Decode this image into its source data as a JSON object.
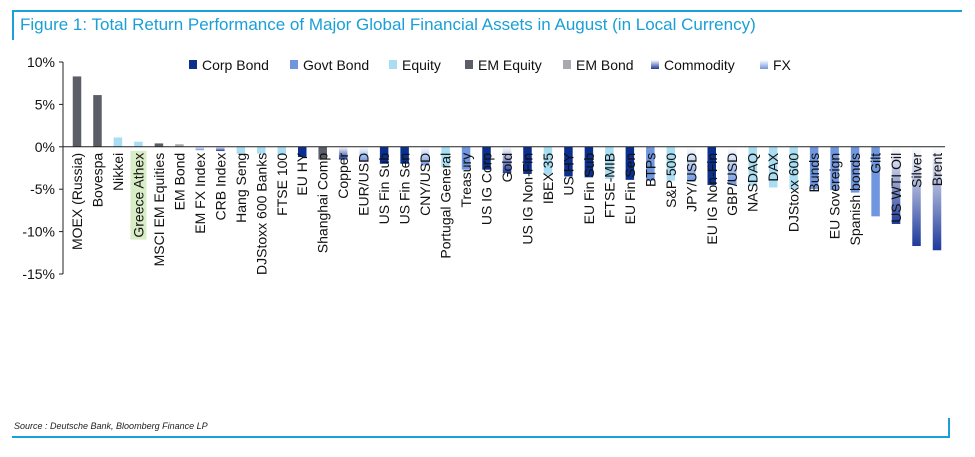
{
  "title": "Figure 1: Total Return Performance of Major Global Financial Assets in August (in Local Currency)",
  "source": "Source : Deutsche Bank, Bloomberg Finance LP",
  "chart_data": {
    "type": "bar",
    "title": "Figure 1: Total Return Performance of Major Global Financial Assets in August (in Local Currency)",
    "xlabel": "",
    "ylabel": "",
    "ylim": [
      -15,
      10
    ],
    "yticks": [
      10,
      5,
      0,
      -5,
      -10,
      -15
    ],
    "ytick_labels": [
      "10%",
      "5%",
      "0%",
      "-5%",
      "-10%",
      "-15%"
    ],
    "highlighted_category": "Greece Athex",
    "legend_position": "top",
    "legend": [
      {
        "key": "corp_bond",
        "label": "Corp Bond",
        "color": "#0a2f8f"
      },
      {
        "key": "govt_bond",
        "label": "Govt Bond",
        "color": "#6f96df"
      },
      {
        "key": "equity",
        "label": "Equity",
        "color": "#a9ddf2"
      },
      {
        "key": "em_equity",
        "label": "EM Equity",
        "color": "#5c5e67"
      },
      {
        "key": "em_bond",
        "label": "EM Bond",
        "color": "#a9a9b0"
      },
      {
        "key": "commodity",
        "label": "Commodity",
        "color": "#1e3a9b",
        "gradient": true
      },
      {
        "key": "fx",
        "label": "FX",
        "color": "#6f96df",
        "gradient": true
      }
    ],
    "categories": [
      "MOEX (Russia)",
      "Bovespa",
      "Nikkei",
      "Greece Athex",
      "MSCI EM Equities",
      "EM Bond",
      "EM FX Index",
      "CRB Index",
      "Hang Seng",
      "DJStoxx 600 Banks",
      "FTSE 100",
      "EU HY",
      "Shanghai Comp",
      "Copper",
      "EUR/USD",
      "US Fin Sub",
      "US Fin Sen",
      "CNY/USD",
      "Portugal General",
      "Treasury",
      "US IG Corp",
      "Gold",
      "US IG Non-Fin",
      "IBEX 35",
      "US HY",
      "EU Fin Sub",
      "FTSE-MIB",
      "EU Fin Sen",
      "BTPs",
      "S&P 500",
      "JPY/USD",
      "EU IG Non-Fin",
      "GBP/USD",
      "NASDAQ",
      "DAX",
      "DJStoxx 600",
      "Bunds",
      "EU Sovereign",
      "Spanish bonds",
      "Gilt",
      "US WTI Oil",
      "Silver",
      "Brent"
    ],
    "values": [
      8.3,
      6.1,
      1.1,
      0.6,
      0.4,
      0.3,
      -0.4,
      -0.5,
      -0.8,
      -0.8,
      -1.0,
      -1.2,
      -1.5,
      -1.5,
      -1.7,
      -2.0,
      -2.0,
      -2.2,
      -2.4,
      -2.7,
      -2.7,
      -3.1,
      -3.2,
      -3.3,
      -3.5,
      -3.6,
      -3.8,
      -3.9,
      -4.0,
      -4.0,
      -4.1,
      -4.5,
      -4.5,
      -4.6,
      -4.8,
      -5.0,
      -5.0,
      -5.1,
      -5.4,
      -8.2,
      -9.1,
      -11.7,
      -12.2
    ],
    "series_type": [
      "em_equity",
      "em_equity",
      "equity",
      "equity",
      "em_equity",
      "em_bond",
      "fx",
      "commodity",
      "equity",
      "equity",
      "equity",
      "corp_bond",
      "em_equity",
      "commodity",
      "fx",
      "corp_bond",
      "corp_bond",
      "fx",
      "equity",
      "govt_bond",
      "corp_bond",
      "commodity",
      "corp_bond",
      "equity",
      "corp_bond",
      "corp_bond",
      "equity",
      "corp_bond",
      "govt_bond",
      "equity",
      "fx",
      "corp_bond",
      "fx",
      "equity",
      "equity",
      "equity",
      "govt_bond",
      "govt_bond",
      "govt_bond",
      "govt_bond",
      "commodity",
      "commodity",
      "commodity"
    ]
  }
}
